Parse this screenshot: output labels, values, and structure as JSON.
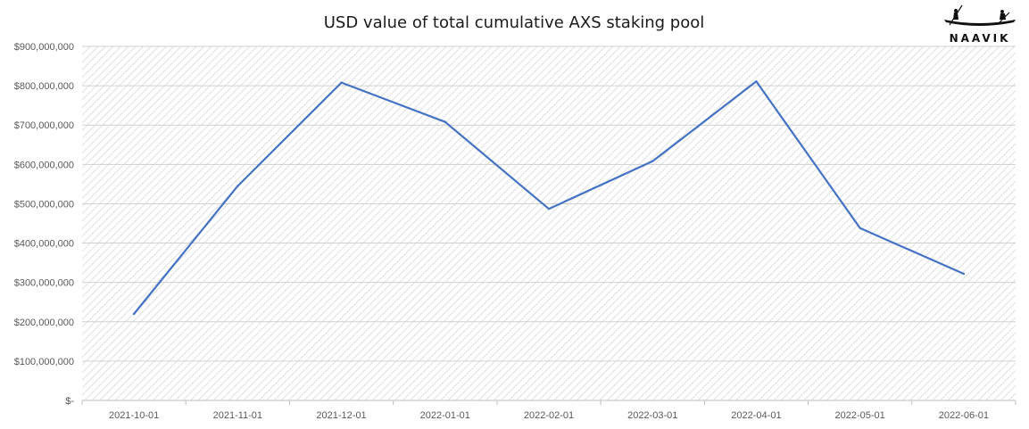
{
  "brand": {
    "name": "NAAVIK"
  },
  "chart_data": {
    "type": "line",
    "title": "USD value of total cumulative AXS staking pool",
    "xlabel": "",
    "ylabel": "",
    "categories": [
      "2021-10-01",
      "2021-11-01",
      "2021-12-01",
      "2022-01-01",
      "2022-02-01",
      "2022-03-01",
      "2022-04-01",
      "2022-05-01",
      "2022-06-01"
    ],
    "series": [
      {
        "values": [
          220000000,
          545000000,
          808000000,
          708000000,
          487000000,
          608000000,
          811000000,
          438000000,
          322000000
        ],
        "color": "#4472c4"
      }
    ],
    "ylim": [
      0,
      900000000
    ],
    "yticks": [
      {
        "value": 0,
        "label": "$-"
      },
      {
        "value": 100000000,
        "label": "$100,000,000"
      },
      {
        "value": 200000000,
        "label": "$200,000,000"
      },
      {
        "value": 300000000,
        "label": "$300,000,000"
      },
      {
        "value": 400000000,
        "label": "$400,000,000"
      },
      {
        "value": 500000000,
        "label": "$500,000,000"
      },
      {
        "value": 600000000,
        "label": "$600,000,000"
      },
      {
        "value": 700000000,
        "label": "$700,000,000"
      },
      {
        "value": 800000000,
        "label": "$800,000,000"
      },
      {
        "value": 900000000,
        "label": "$900,000,000"
      }
    ],
    "grid": true,
    "legend": "none"
  }
}
